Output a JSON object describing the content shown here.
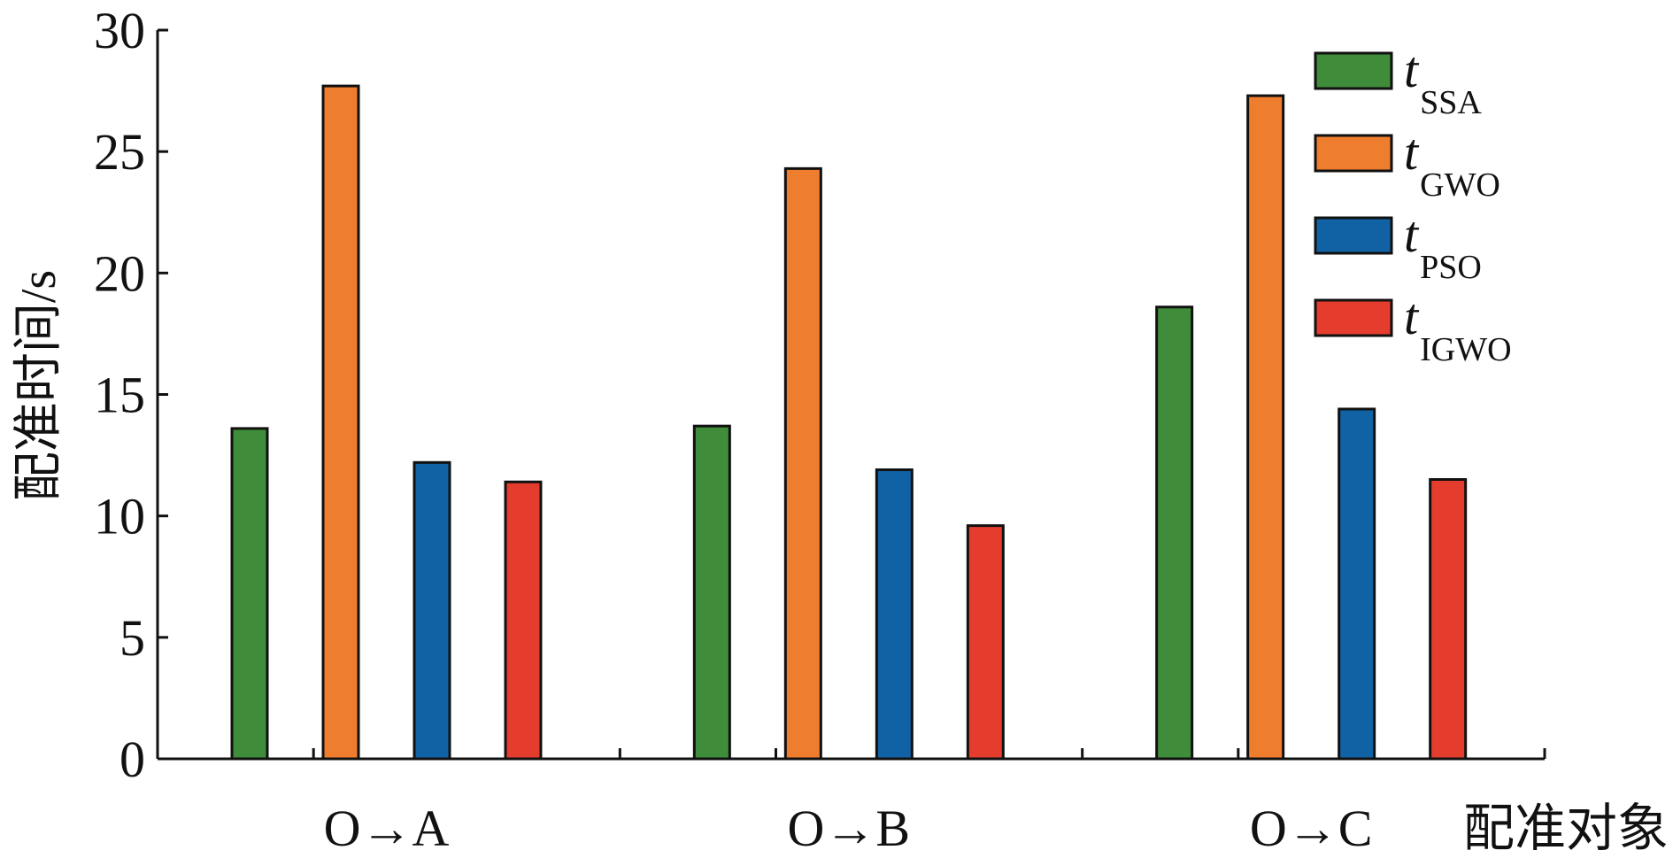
{
  "chart_data": {
    "type": "bar",
    "title": "",
    "xlabel": "配准对象",
    "ylabel": "配准时间/s",
    "ylim": [
      0,
      30
    ],
    "yticks": [
      "0",
      "5",
      "10",
      "15",
      "20",
      "25",
      "30"
    ],
    "categories": [
      "O→A",
      "O→B",
      "O→C"
    ],
    "series": [
      {
        "name": "t",
        "subscript": "SSA",
        "color": "#3f8c3a",
        "values": [
          13.6,
          13.7,
          18.6
        ]
      },
      {
        "name": "t",
        "subscript": "GWO",
        "color": "#ef7d2e",
        "values": [
          27.7,
          24.3,
          27.3
        ]
      },
      {
        "name": "t",
        "subscript": "PSO",
        "color": "#1162a5",
        "values": [
          12.2,
          11.9,
          14.4
        ]
      },
      {
        "name": "t",
        "subscript": "IGWO",
        "color": "#e43d2e",
        "values": [
          11.4,
          9.6,
          11.5
        ]
      }
    ],
    "legend_position": "top-right",
    "grid": false
  }
}
